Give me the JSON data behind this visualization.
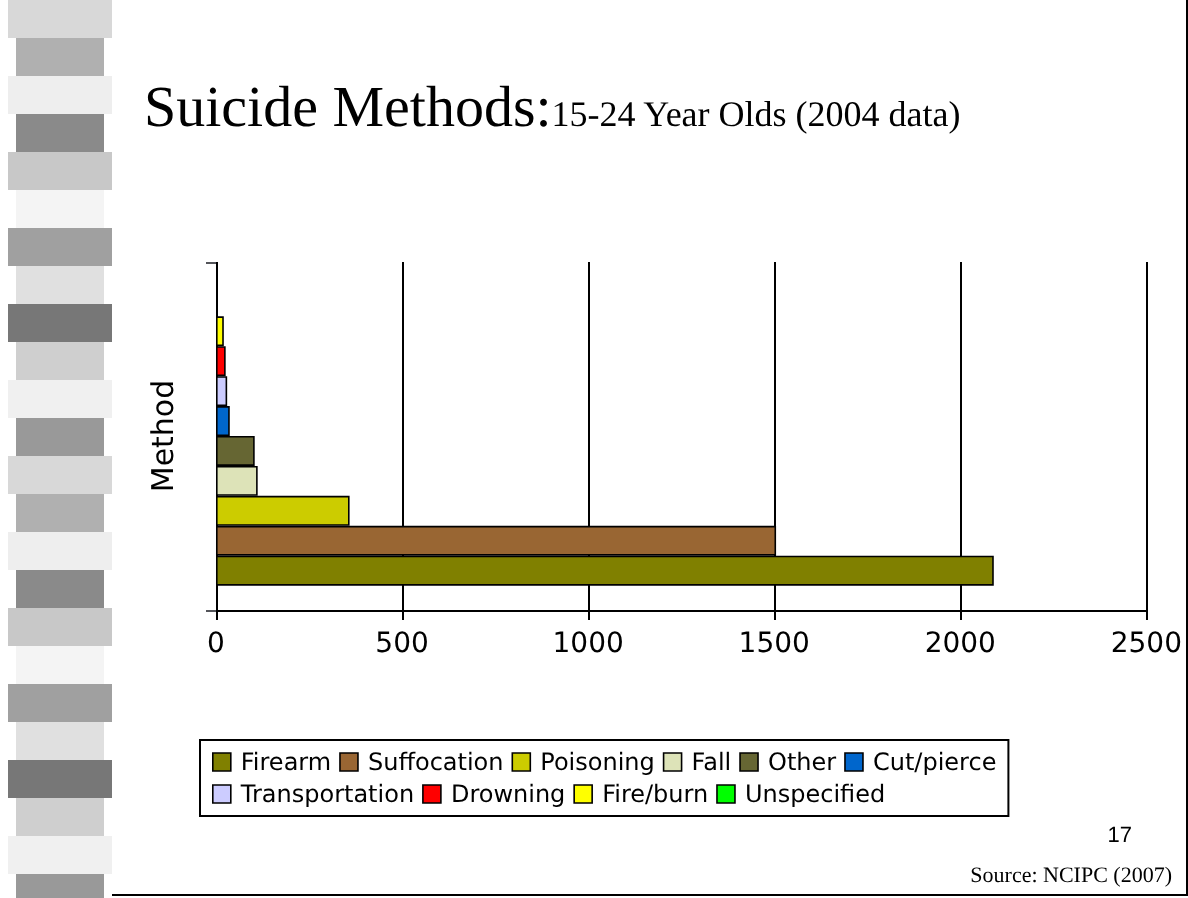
{
  "chart_data": {
    "type": "bar",
    "orientation": "horizontal",
    "title": "Suicide Methods:",
    "subtitle": "15-24 Year Olds (2004 data)",
    "ylabel": "Method",
    "categories": [
      null
    ],
    "series": [
      {
        "name": "Firearm",
        "color": "#808000",
        "values": [
          2090
        ]
      },
      {
        "name": "Suffocation",
        "color": "#996633",
        "values": [
          1505
        ]
      },
      {
        "name": "Poisoning",
        "color": "#cccc00",
        "values": [
          359
        ]
      },
      {
        "name": "Fall",
        "color": "#dde3b8",
        "values": [
          112
        ]
      },
      {
        "name": "Other",
        "color": "#666633",
        "values": [
          104
        ]
      },
      {
        "name": "Cut/pierce",
        "color": "#0066cc",
        "values": [
          37
        ]
      },
      {
        "name": "Transportation",
        "color": "#ccccff",
        "values": [
          30
        ]
      },
      {
        "name": "Drowning",
        "color": "#ff0000",
        "values": [
          26
        ]
      },
      {
        "name": "Fire/burn",
        "color": "#ffff00",
        "values": [
          21
        ]
      },
      {
        "name": "Unspecified",
        "color": "#00ff00",
        "values": [
          null
        ]
      }
    ],
    "xlim": [
      0,
      2500
    ],
    "xticks": [
      0,
      500,
      1000,
      1500,
      2000,
      2500
    ],
    "grid": "x",
    "legend": "bottom",
    "annotations": [
      "17",
      "Source: NCIPC (2007)"
    ]
  }
}
